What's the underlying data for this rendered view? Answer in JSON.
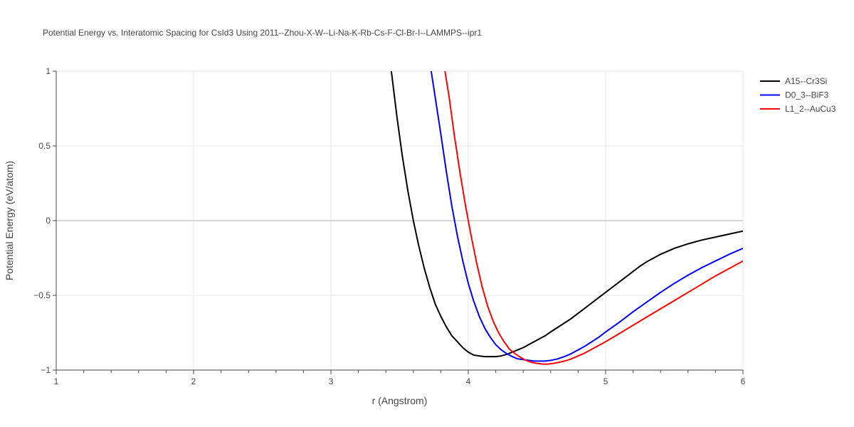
{
  "chart_data": {
    "type": "line",
    "title": "Potential Energy vs. Interatomic Spacing for CsId3 Using 2011--Zhou-X-W--Li-Na-K-Rb-Cs-F-Cl-Br-I--LAMMPS--ipr1",
    "xlabel": "r (Angstrom)",
    "ylabel": "Potential Energy (eV/atom)",
    "xlim": [
      1,
      6
    ],
    "ylim": [
      -1,
      1
    ],
    "xticks": [
      1,
      2,
      3,
      4,
      5,
      6
    ],
    "xtick_labels": [
      "1",
      "2",
      "3",
      "4",
      "5",
      "6"
    ],
    "yticks": [
      -1,
      -0.5,
      0,
      0.5,
      1
    ],
    "ytick_labels": [
      "−1",
      "−0.5",
      "0",
      "0.5",
      "1"
    ],
    "grid": true,
    "legend_position": "top-right",
    "series": [
      {
        "name": "A15--Cr3Si",
        "color": "#000000",
        "x": [
          3.44,
          3.48,
          3.52,
          3.56,
          3.6,
          3.64,
          3.68,
          3.72,
          3.76,
          3.8,
          3.84,
          3.88,
          3.92,
          3.96,
          4.0,
          4.04,
          4.08,
          4.12,
          4.16,
          4.2,
          4.24,
          4.28,
          4.32,
          4.36,
          4.4,
          4.44,
          4.48,
          4.52,
          4.56,
          4.6,
          4.65,
          4.7,
          4.75,
          4.8,
          4.85,
          4.9,
          4.95,
          5.0,
          5.05,
          5.1,
          5.15,
          5.2,
          5.25,
          5.3,
          5.4,
          5.5,
          5.6,
          5.7,
          5.8,
          5.9,
          6.0
        ],
        "y": [
          1.0,
          0.7,
          0.43,
          0.2,
          0.0,
          -0.17,
          -0.32,
          -0.45,
          -0.56,
          -0.64,
          -0.71,
          -0.77,
          -0.81,
          -0.85,
          -0.88,
          -0.9,
          -0.905,
          -0.91,
          -0.91,
          -0.91,
          -0.905,
          -0.895,
          -0.88,
          -0.865,
          -0.85,
          -0.83,
          -0.81,
          -0.79,
          -0.77,
          -0.745,
          -0.715,
          -0.685,
          -0.655,
          -0.62,
          -0.585,
          -0.55,
          -0.515,
          -0.48,
          -0.445,
          -0.41,
          -0.375,
          -0.34,
          -0.305,
          -0.275,
          -0.225,
          -0.185,
          -0.155,
          -0.13,
          -0.11,
          -0.09,
          -0.07
        ]
      },
      {
        "name": "D0_3--BiF3",
        "color": "#0000ff",
        "x": [
          3.73,
          3.76,
          3.8,
          3.84,
          3.88,
          3.92,
          3.96,
          4.0,
          4.04,
          4.08,
          4.12,
          4.16,
          4.2,
          4.24,
          4.28,
          4.32,
          4.36,
          4.4,
          4.44,
          4.48,
          4.52,
          4.56,
          4.6,
          4.65,
          4.7,
          4.75,
          4.8,
          4.85,
          4.9,
          4.95,
          5.0,
          5.1,
          5.2,
          5.3,
          5.4,
          5.5,
          5.6,
          5.7,
          5.8,
          5.9,
          6.0
        ],
        "y": [
          1.0,
          0.82,
          0.58,
          0.33,
          0.1,
          -0.1,
          -0.27,
          -0.42,
          -0.54,
          -0.64,
          -0.72,
          -0.78,
          -0.83,
          -0.865,
          -0.89,
          -0.91,
          -0.925,
          -0.93,
          -0.935,
          -0.94,
          -0.94,
          -0.94,
          -0.935,
          -0.925,
          -0.91,
          -0.89,
          -0.865,
          -0.84,
          -0.81,
          -0.78,
          -0.745,
          -0.68,
          -0.61,
          -0.545,
          -0.48,
          -0.42,
          -0.365,
          -0.315,
          -0.27,
          -0.225,
          -0.185
        ]
      },
      {
        "name": "L1_2--AuCu3",
        "color": "#ff0000",
        "x": [
          3.83,
          3.86,
          3.9,
          3.94,
          3.98,
          4.02,
          4.06,
          4.1,
          4.14,
          4.18,
          4.22,
          4.26,
          4.3,
          4.34,
          4.38,
          4.42,
          4.46,
          4.5,
          4.54,
          4.58,
          4.62,
          4.66,
          4.7,
          4.75,
          4.8,
          4.85,
          4.9,
          4.95,
          5.0,
          5.1,
          5.2,
          5.3,
          5.4,
          5.5,
          5.6,
          5.7,
          5.8,
          5.9,
          6.0
        ],
        "y": [
          1.0,
          0.83,
          0.56,
          0.32,
          0.1,
          -0.1,
          -0.28,
          -0.44,
          -0.57,
          -0.67,
          -0.75,
          -0.81,
          -0.86,
          -0.89,
          -0.915,
          -0.935,
          -0.948,
          -0.955,
          -0.96,
          -0.96,
          -0.955,
          -0.948,
          -0.94,
          -0.925,
          -0.905,
          -0.885,
          -0.86,
          -0.835,
          -0.81,
          -0.755,
          -0.7,
          -0.645,
          -0.59,
          -0.535,
          -0.48,
          -0.425,
          -0.37,
          -0.32,
          -0.27
        ]
      }
    ]
  }
}
